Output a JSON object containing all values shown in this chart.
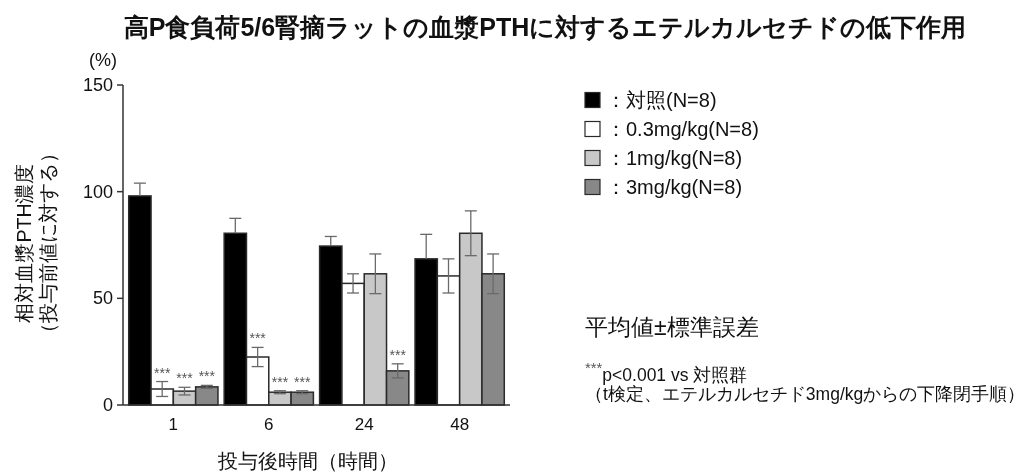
{
  "chart_data": {
    "type": "bar",
    "title": "高P食負荷5/6腎摘ラットの血漿PTHに対するエテルカルセチドの低下作用",
    "xlabel": "投与後時間（時間）",
    "ylabel": "相対血漿PTH濃度（投与前値に対する）",
    "categories": [
      "1",
      "6",
      "24",
      "48"
    ],
    "series": [
      {
        "name": "：対照(N=8)",
        "color": "#000000",
        "values": [
          98,
          80.5,
          74.5,
          68.5
        ],
        "errors": [
          [
            98,
            104
          ],
          [
            80.5,
            87.5
          ],
          [
            74.5,
            79
          ],
          [
            68.5,
            80
          ]
        ]
      },
      {
        "name": "：0.3mg/kg(N=8)",
        "color": "#ffffff",
        "values": [
          7.5,
          22.5,
          57,
          60.5
        ],
        "errors": [
          3.5,
          4.5,
          4.5,
          8
        ],
        "value_labels": [
          "***",
          "***",
          null,
          null
        ]
      },
      {
        "name": "：1mg/kg(N=8)",
        "color": "#c8c8c8",
        "values": [
          6.5,
          6,
          61.5,
          80.5
        ],
        "errors": [
          1.8,
          0.7,
          9.3,
          10.5
        ],
        "value_labels": [
          "***",
          "***",
          null,
          null
        ]
      },
      {
        "name": "：3mg/kg(N=8)",
        "color": "#888888",
        "values": [
          8.5,
          6,
          16,
          61.5
        ],
        "errors": [
          0.7,
          0.7,
          3.3,
          9.3
        ],
        "value_labels": [
          "***",
          "***",
          "***",
          null
        ]
      }
    ],
    "ylim": [
      0,
      150
    ],
    "yticks": [
      0,
      50,
      100,
      150
    ],
    "legend": "right",
    "annotations": [
      "(%)",
      "平均値±標準誤差",
      "$^{***}$p<0.001 vs 対照群",
      "（t検定、エテルカルセチド3mg/kgからの下降閉手順）"
    ]
  }
}
